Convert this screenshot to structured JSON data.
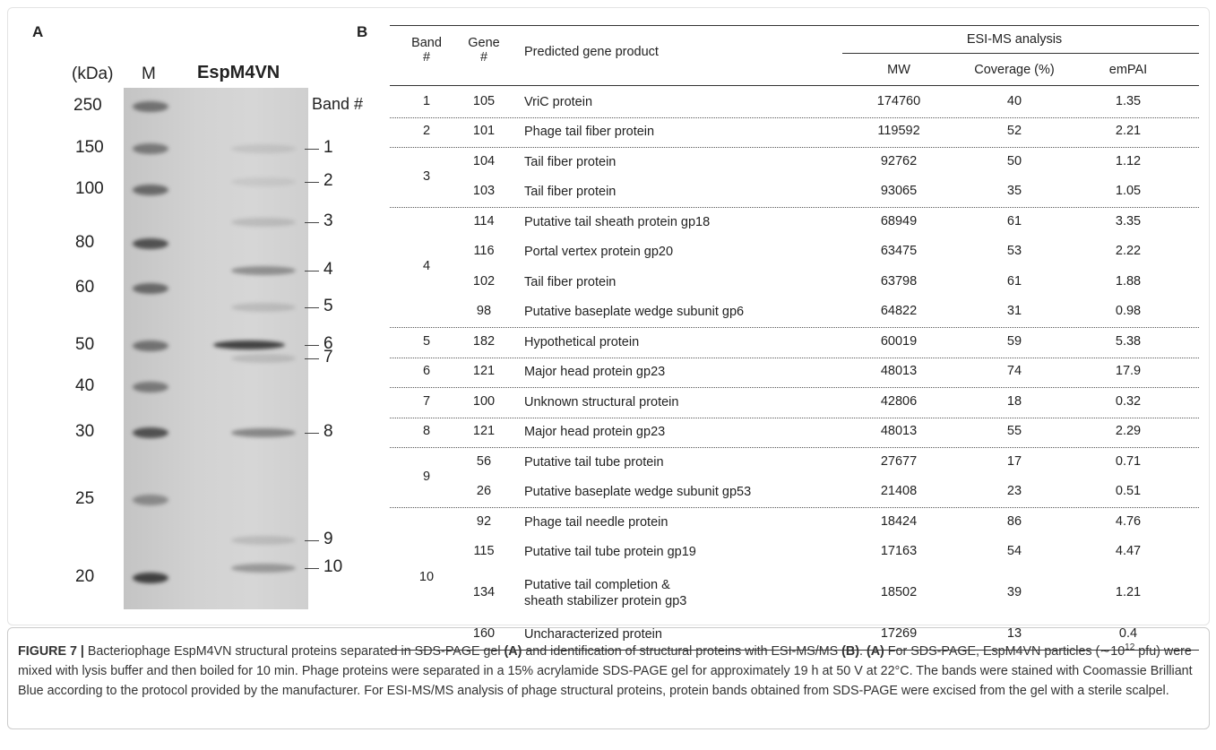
{
  "panel_a": {
    "label": "A",
    "kda_label": "(kDa)",
    "lane_m": "M",
    "lane_sample": "EspM4VN",
    "band_header": "Band #",
    "markers": [
      "250",
      "150",
      "100",
      "80",
      "60",
      "50",
      "40",
      "30",
      "25",
      "20"
    ],
    "band_labels": [
      "1",
      "2",
      "3",
      "4",
      "5",
      "6",
      "7",
      "8",
      "9",
      "10"
    ]
  },
  "panel_b": {
    "label": "B",
    "header": {
      "band": "Band\n#",
      "gene": "Gene\n#",
      "product": "Predicted gene product",
      "esi": "ESI-MS analysis",
      "mw": "MW",
      "coverage": "Coverage (%)",
      "empai": "emPAI"
    },
    "groups": [
      {
        "band": "1",
        "rows": [
          {
            "gene": "105",
            "product": "VriC protein",
            "mw": "174760",
            "coverage": "40",
            "empai": "1.35"
          }
        ]
      },
      {
        "band": "2",
        "rows": [
          {
            "gene": "101",
            "product": "Phage tail fiber protein",
            "mw": "119592",
            "coverage": "52",
            "empai": "2.21"
          }
        ]
      },
      {
        "band": "3",
        "rows": [
          {
            "gene": "104",
            "product": "Tail fiber protein",
            "mw": "92762",
            "coverage": "50",
            "empai": "1.12"
          },
          {
            "gene": "103",
            "product": "Tail fiber protein",
            "mw": "93065",
            "coverage": "35",
            "empai": "1.05"
          }
        ]
      },
      {
        "band": "4",
        "rows": [
          {
            "gene": "114",
            "product": "Putative tail sheath protein gp18",
            "mw": "68949",
            "coverage": "61",
            "empai": "3.35"
          },
          {
            "gene": "116",
            "product": "Portal vertex protein gp20",
            "mw": "63475",
            "coverage": "53",
            "empai": "2.22"
          },
          {
            "gene": "102",
            "product": "Tail fiber protein",
            "mw": "63798",
            "coverage": "61",
            "empai": "1.88"
          },
          {
            "gene": "98",
            "product": "Putative baseplate wedge subunit gp6",
            "mw": "64822",
            "coverage": "31",
            "empai": "0.98"
          }
        ]
      },
      {
        "band": "5",
        "rows": [
          {
            "gene": "182",
            "product": "Hypothetical protein",
            "mw": "60019",
            "coverage": "59",
            "empai": "5.38"
          }
        ]
      },
      {
        "band": "6",
        "rows": [
          {
            "gene": "121",
            "product": "Major head protein gp23",
            "mw": "48013",
            "coverage": "74",
            "empai": "17.9"
          }
        ]
      },
      {
        "band": "7",
        "rows": [
          {
            "gene": "100",
            "product": "Unknown structural protein",
            "mw": "42806",
            "coverage": "18",
            "empai": "0.32"
          }
        ]
      },
      {
        "band": "8",
        "rows": [
          {
            "gene": "121",
            "product": "Major head protein gp23",
            "mw": "48013",
            "coverage": "55",
            "empai": "2.29"
          }
        ]
      },
      {
        "band": "9",
        "rows": [
          {
            "gene": "56",
            "product": "Putative tail tube protein",
            "mw": "27677",
            "coverage": "17",
            "empai": "0.71"
          },
          {
            "gene": "26",
            "product": "Putative baseplate wedge subunit gp53",
            "mw": "21408",
            "coverage": "23",
            "empai": "0.51"
          }
        ]
      },
      {
        "band": "10",
        "rows": [
          {
            "gene": "92",
            "product": "Phage tail needle protein",
            "mw": "18424",
            "coverage": "86",
            "empai": "4.76"
          },
          {
            "gene": "115",
            "product": "Putative tail tube protein gp19",
            "mw": "17163",
            "coverage": "54",
            "empai": "4.47"
          },
          {
            "gene": "134",
            "product": "Putative tail completion &\nsheath stabilizer protein gp3",
            "mw": "18502",
            "coverage": "39",
            "empai": "1.21"
          },
          {
            "gene": "160",
            "product": "Uncharacterized protein",
            "mw": "17269",
            "coverage": "13",
            "empai": "0.4"
          }
        ]
      }
    ]
  },
  "caption": {
    "parts": [
      "FIGURE 7 |",
      " Bacteriophage EspM4VN structural proteins separated in SDS-PAGE gel ",
      "(A)",
      " and identification of structural proteins with ESI-MS/MS ",
      "(B)",
      ". ",
      "(A)",
      " For SDS-PAGE, EspM4VN particles (∼10",
      "12",
      " pfu) were mixed with lysis buffer and then boiled for 10 min. Phage proteins were separated in a 15% acrylamide SDS-PAGE gel for approximately 19 h at 50 V at 22°C. The bands were stained with Coomassie Brilliant Blue according to the protocol provided by the manufacturer. For ESI-MS/MS analysis of phage structural proteins, protein bands obtained from SDS-PAGE were excised from the gel with a sterile scalpel."
    ]
  }
}
